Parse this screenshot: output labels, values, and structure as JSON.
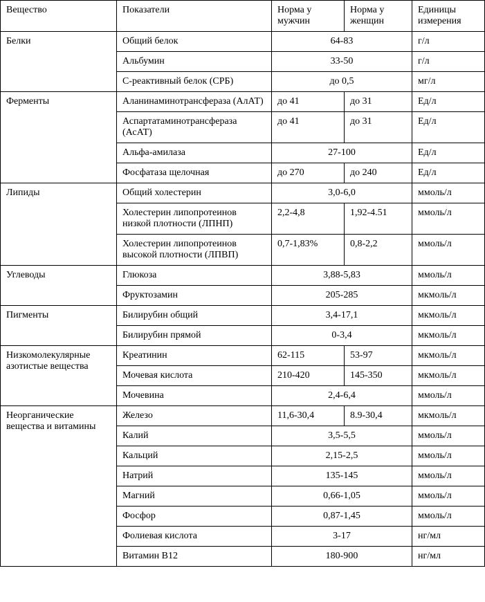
{
  "table": {
    "background_color": "#ffffff",
    "border_color": "#000000",
    "text_color": "#000000",
    "font_family": "Times New Roman",
    "font_size_pt": 11,
    "columns": [
      {
        "key": "substance",
        "label": "Вещество",
        "width_pct": 24
      },
      {
        "key": "indicator",
        "label": "Показатели",
        "width_pct": 32
      },
      {
        "key": "male",
        "label": "Норма у мужчин",
        "width_pct": 15
      },
      {
        "key": "female",
        "label": "Норма у женщин",
        "width_pct": 14
      },
      {
        "key": "units",
        "label": "Единицы измерения",
        "width_pct": 15
      }
    ],
    "groups": [
      {
        "substance": "Белки",
        "rows": [
          {
            "indicator": "Общий белок",
            "combined": "64-83",
            "units": "г/л"
          },
          {
            "indicator": "Альбумин",
            "combined": "33-50",
            "units": "г/л"
          },
          {
            "indicator": "С-реактивный белок (СРБ)",
            "combined": "до 0,5",
            "units": "мг/л"
          }
        ]
      },
      {
        "substance": "Ферменты",
        "rows": [
          {
            "indicator": "Аланинаминотрансфераза (АлАТ)",
            "male": "до 41",
            "female": "до 31",
            "units": "Ед/л"
          },
          {
            "indicator": "Аспартатаминотрансфераза (АсАТ)",
            "male": "до 41",
            "female": "до 31",
            "units": "Ед/л"
          },
          {
            "indicator": "Альфа-амилаза",
            "combined": "27-100",
            "units": "Ед/л"
          },
          {
            "indicator": "Фосфатаза щелочная",
            "male": "до 270",
            "female": "до 240",
            "units": "Ед/л"
          }
        ]
      },
      {
        "substance": "Липиды",
        "rows": [
          {
            "indicator": "Общий холестерин",
            "combined": "3,0-6,0",
            "units": "ммоль/л"
          },
          {
            "indicator": "Холестерин липопротеинов низкой плотности (ЛПНП)",
            "male": "2,2-4,8",
            "female": "1,92-4.51",
            "units": "ммоль/л"
          },
          {
            "indicator": "Холестерин липопротеинов высокой плотности (ЛПВП)",
            "male": "0,7-1,83%",
            "female": "0,8-2,2",
            "units": "ммоль/л"
          }
        ]
      },
      {
        "substance": "Углеводы",
        "rows": [
          {
            "indicator": "Глюкоза",
            "combined": "3,88-5,83",
            "units": "ммоль/л"
          },
          {
            "indicator": "Фруктозамин",
            "combined": "205-285",
            "units": "мкмоль/л"
          }
        ]
      },
      {
        "substance": "Пигменты",
        "rows": [
          {
            "indicator": "Билирубин общий",
            "combined": "3,4-17,1",
            "units": "мкмоль/л"
          },
          {
            "indicator": "Билирубин прямой",
            "combined": "0-3,4",
            "units": "мкмоль/л"
          }
        ]
      },
      {
        "substance": "Низкомолекулярные азотистые вещества",
        "rows": [
          {
            "indicator": "Креатинин",
            "male": "62-115",
            "female": "53-97",
            "units": "мкмоль/л"
          },
          {
            "indicator": "Мочевая кислота",
            "male": "210-420",
            "female": "145-350",
            "units": "мкмоль/л"
          },
          {
            "indicator": "Мочевина",
            "combined": "2,4-6,4",
            "units": "ммоль/л"
          }
        ]
      },
      {
        "substance": "Неорганические вещества и витамины",
        "rows": [
          {
            "indicator": "Железо",
            "male": "11,6-30,4",
            "female": "8.9-30,4",
            "units": "мкмоль/л"
          },
          {
            "indicator": "Калий",
            "combined": "3,5-5,5",
            "units": "ммоль/л"
          },
          {
            "indicator": "Кальций",
            "combined": "2,15-2,5",
            "units": "ммоль/л"
          },
          {
            "indicator": "Натрий",
            "combined": "135-145",
            "units": "ммоль/л"
          },
          {
            "indicator": "Магний",
            "combined": "0,66-1,05",
            "units": "ммоль/л"
          },
          {
            "indicator": "Фосфор",
            "combined": "0,87-1,45",
            "units": "ммоль/л"
          },
          {
            "indicator": "Фолиевая кислота",
            "combined": "3-17",
            "units": "нг/мл"
          },
          {
            "indicator": "Витамин В12",
            "combined": "180-900",
            "units": "нг/мл"
          }
        ]
      }
    ]
  }
}
